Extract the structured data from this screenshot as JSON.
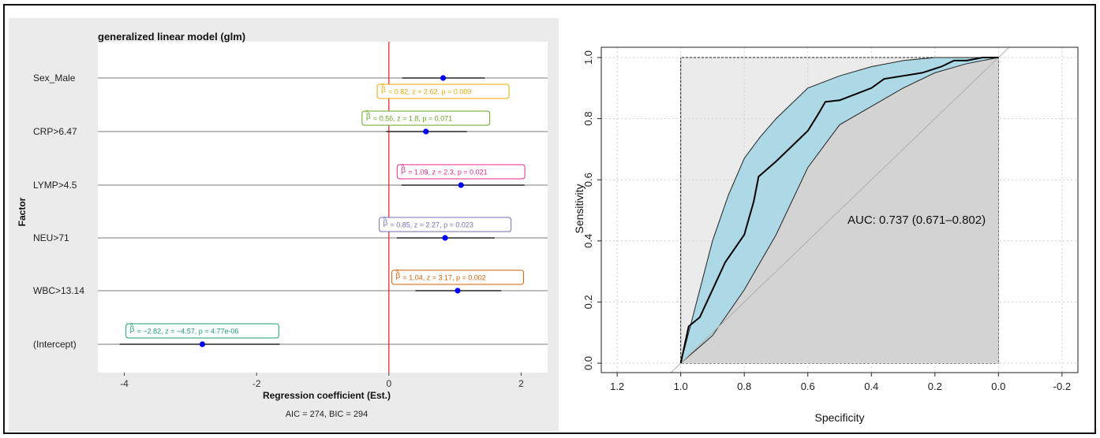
{
  "chart_data": [
    {
      "type": "forest",
      "title": "generalized linear model (glm)",
      "xlabel": "Regression coefficient (Est.)",
      "ylabel": "Factor",
      "caption": "AIC = 274, BIC = 294",
      "xlim": [
        -4.4,
        2.4
      ],
      "xticks": [
        -4,
        -2,
        0,
        2
      ],
      "reference_line": 0,
      "colors": {
        "panel_bg": "#ebebeb",
        "plot_bg": "#ffffff",
        "reference": "#e31a1c",
        "point": "#0000ff"
      },
      "rows": [
        {
          "factor": "Sex_Male",
          "estimate": 0.82,
          "ci": [
            0.2,
            1.45
          ],
          "beta": "0.82",
          "z": "2.62",
          "p": "0.009",
          "label_color": "#e6ab02"
        },
        {
          "factor": "CRP>6.47",
          "estimate": 0.56,
          "ci": [
            -0.04,
            1.18
          ],
          "beta": "0.56",
          "z": "1.8",
          "p": "0.071",
          "label_color": "#66a61e"
        },
        {
          "factor": "LYMP>4.5",
          "estimate": 1.09,
          "ci": [
            0.19,
            2.05
          ],
          "beta": "1.09",
          "z": "2.3",
          "p": "0.021",
          "label_color": "#e7298a"
        },
        {
          "factor": "NEU>71",
          "estimate": 0.85,
          "ci": [
            0.12,
            1.6
          ],
          "beta": "0.85",
          "z": "2.27",
          "p": "0.023",
          "label_color": "#7570b3"
        },
        {
          "factor": "WBC>13.14",
          "estimate": 1.04,
          "ci": [
            0.4,
            1.7
          ],
          "beta": "1.04",
          "z": "3.17",
          "p": "0.002",
          "label_color": "#d95f02"
        },
        {
          "factor": "(Intercept)",
          "estimate": -2.82,
          "ci": [
            -4.07,
            -1.65
          ],
          "beta": "−2.82",
          "z": "−4.57",
          "p": "4.77e-06",
          "label_color": "#1b9e77"
        }
      ]
    },
    {
      "type": "roc",
      "xlabel": "Specificity",
      "ylabel": "Sensitivity",
      "xlim": [
        1.25,
        -0.25
      ],
      "ylim": [
        0,
        1
      ],
      "xticks": [
        1.2,
        1.0,
        0.8,
        0.6,
        0.4,
        0.2,
        0.0,
        -0.2
      ],
      "xtick_labels": [
        "1.2",
        "1.0",
        "0.8",
        "0.6",
        "0.4",
        "0.2",
        "0.0",
        "-0.2"
      ],
      "yticks": [
        0.0,
        0.2,
        0.4,
        0.6,
        0.8,
        1.0
      ],
      "ytick_labels": [
        "0.0",
        "0.2",
        "0.4",
        "0.6",
        "0.8",
        "1.0"
      ],
      "grid": true,
      "auc_label": "AUC: 0.737 (0.671–0.802)",
      "colors": {
        "ci_band": "#add8e6",
        "curve": "#000000",
        "under_curve": "#d3d3d3",
        "diagonal": "#b0b0b0"
      },
      "roc_curve": [
        [
          1.0,
          0.0
        ],
        [
          0.975,
          0.12
        ],
        [
          0.94,
          0.15
        ],
        [
          0.9,
          0.24
        ],
        [
          0.86,
          0.33
        ],
        [
          0.8,
          0.42
        ],
        [
          0.77,
          0.53
        ],
        [
          0.755,
          0.61
        ],
        [
          0.7,
          0.66
        ],
        [
          0.65,
          0.71
        ],
        [
          0.6,
          0.76
        ],
        [
          0.57,
          0.81
        ],
        [
          0.545,
          0.855
        ],
        [
          0.5,
          0.86
        ],
        [
          0.45,
          0.88
        ],
        [
          0.4,
          0.9
        ],
        [
          0.36,
          0.93
        ],
        [
          0.3,
          0.94
        ],
        [
          0.24,
          0.95
        ],
        [
          0.18,
          0.97
        ],
        [
          0.14,
          0.99
        ],
        [
          0.1,
          0.99
        ],
        [
          0.05,
          1.0
        ],
        [
          0.0,
          1.0
        ]
      ],
      "ci_upper": [
        [
          1.0,
          0.0
        ],
        [
          0.95,
          0.2
        ],
        [
          0.9,
          0.4
        ],
        [
          0.85,
          0.55
        ],
        [
          0.8,
          0.67
        ],
        [
          0.75,
          0.74
        ],
        [
          0.7,
          0.8
        ],
        [
          0.6,
          0.9
        ],
        [
          0.5,
          0.94
        ],
        [
          0.4,
          0.97
        ],
        [
          0.3,
          0.99
        ],
        [
          0.2,
          1.0
        ],
        [
          0.0,
          1.0
        ]
      ],
      "ci_lower": [
        [
          1.0,
          0.0
        ],
        [
          0.9,
          0.09
        ],
        [
          0.8,
          0.24
        ],
        [
          0.7,
          0.42
        ],
        [
          0.6,
          0.64
        ],
        [
          0.5,
          0.78
        ],
        [
          0.4,
          0.84
        ],
        [
          0.3,
          0.9
        ],
        [
          0.2,
          0.95
        ],
        [
          0.1,
          0.98
        ],
        [
          0.0,
          1.0
        ]
      ]
    }
  ]
}
